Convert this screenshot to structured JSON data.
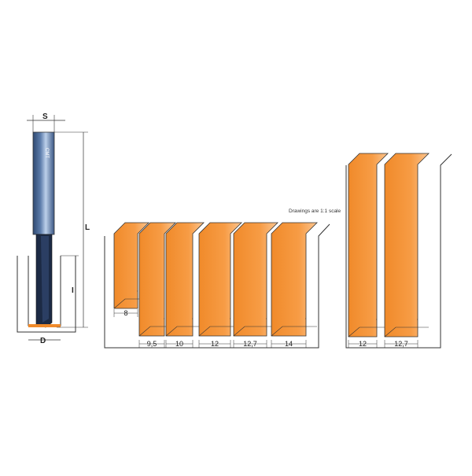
{
  "colors": {
    "orange": "#f08a2a",
    "orange_light": "#fbc590",
    "shank": "#2f4a72",
    "cutter": "#1c2a44",
    "outline": "#333333"
  },
  "bit": {
    "label_s": "S",
    "label_l": "L",
    "label_i": "I",
    "label_d": "D",
    "shank_text": "CMT"
  },
  "note": "Drawings are 1:1 scale",
  "grooves": [
    {
      "width_label": "8"
    },
    {
      "width_label": "9,5"
    },
    {
      "width_label": "10"
    },
    {
      "width_label": "12"
    },
    {
      "width_label": "12,7"
    },
    {
      "width_label": "14"
    }
  ],
  "tall_grooves": [
    {
      "width_label": "12"
    },
    {
      "width_label": "12,7"
    }
  ]
}
